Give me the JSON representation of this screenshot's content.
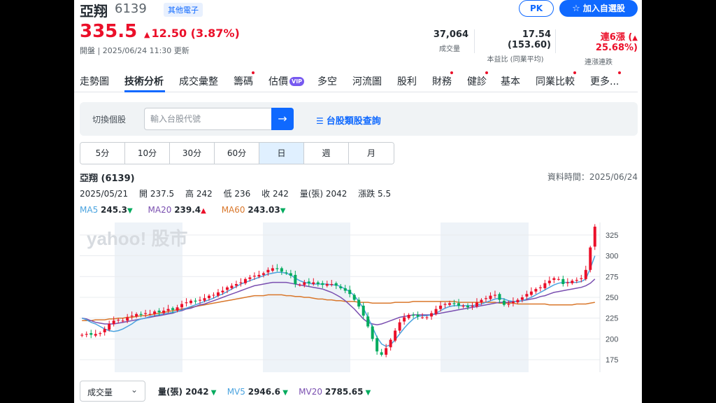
{
  "header": {
    "name": "亞翔",
    "code": "6139",
    "tag": "其他電子",
    "pk_label": "PK",
    "add_label": "加入自選股",
    "price": "335.5",
    "change": "12.50 (3.87%)",
    "status": "開盤 | 2025/06/24 11:30 更新"
  },
  "stats": [
    {
      "value": "37,064",
      "label": "成交量"
    },
    {
      "value": "17.54 (153.60)",
      "label": "本益比 (同業平均)"
    },
    {
      "value_main": "連6漲 (",
      "value_pct": "25.68%)",
      "label": "連漲連跌"
    }
  ],
  "tabs": [
    "走勢圖",
    "技術分析",
    "成交彙整",
    "籌碼",
    "估價",
    "多空",
    "河流圖",
    "股利",
    "財務",
    "健診",
    "基本",
    "同業比較",
    "更多..."
  ],
  "vip_badge": "VIP",
  "search": {
    "label": "切換個股",
    "placeholder": "輸入台股代號",
    "category_link": "台股類股查詢"
  },
  "periods": [
    "5分",
    "10分",
    "30分",
    "60分",
    "日",
    "週",
    "月"
  ],
  "chart_info": {
    "title": "亞翔 (6139)",
    "data_time": "資料時間：2025/06/24",
    "date": "2025/05/21",
    "open": "開 237.5",
    "high": "高 242",
    "low": "低 236",
    "close": "收 242",
    "volume": "量(張) 2042",
    "diff": "漲跌 5.5"
  },
  "ma": [
    {
      "name": "MA5",
      "value": "245.3",
      "dir": "down",
      "color": "#4aa3df"
    },
    {
      "name": "MA20",
      "value": "239.4",
      "dir": "up",
      "color": "#7a4fb0"
    },
    {
      "name": "MA60",
      "value": "243.03",
      "dir": "down",
      "color": "#d9772b"
    }
  ],
  "chart_data": {
    "type": "candlestick",
    "watermark": "yahoo! 股市",
    "y_ticks": [
      175,
      200,
      225,
      250,
      275,
      300,
      325
    ],
    "ylim": [
      160,
      340
    ],
    "closes": [
      205,
      206,
      205,
      206,
      207,
      212,
      218,
      222,
      223,
      222,
      226,
      228,
      230,
      229,
      231,
      230,
      233,
      232,
      234,
      236,
      235,
      238,
      242,
      244,
      246,
      245,
      247,
      249,
      252,
      253,
      256,
      258,
      262,
      264,
      266,
      268,
      272,
      274,
      276,
      277,
      279,
      283,
      285,
      284,
      281,
      279,
      276,
      266,
      265,
      268,
      267,
      268,
      266,
      265,
      266,
      266,
      264,
      261,
      258,
      254,
      247,
      239,
      228,
      215,
      200,
      185,
      181,
      189,
      199,
      210,
      220,
      226,
      229,
      228,
      227,
      226,
      226,
      231,
      236,
      240,
      242,
      243,
      242,
      240,
      240,
      238,
      240,
      244,
      247,
      249,
      252,
      253,
      247,
      241,
      242,
      245,
      247,
      250,
      254,
      257,
      260,
      262,
      267,
      270,
      273,
      272,
      266,
      268,
      270,
      271,
      273,
      283,
      310,
      335
    ],
    "ma5": [
      225,
      223,
      220,
      218,
      215,
      212,
      210,
      209,
      210,
      212,
      215,
      218,
      222,
      224,
      225,
      227,
      228,
      229,
      230,
      231,
      232,
      233,
      235,
      237,
      239,
      241,
      243,
      245,
      247,
      249,
      252,
      254,
      257,
      260,
      263,
      266,
      268,
      270,
      272,
      274,
      276,
      278,
      279,
      280,
      280,
      279,
      277,
      273,
      270,
      268,
      267,
      266,
      266,
      266,
      266,
      265,
      265,
      263,
      260,
      257,
      252,
      245,
      237,
      226,
      214,
      202,
      194,
      191,
      193,
      199,
      206,
      213,
      219,
      224,
      227,
      228,
      228,
      229,
      231,
      234,
      237,
      239,
      240,
      240,
      240,
      240,
      240,
      241,
      242,
      244,
      246,
      248,
      249,
      248,
      246,
      245,
      245,
      246,
      248,
      250,
      253,
      256,
      259,
      262,
      265,
      267,
      268,
      268,
      268,
      268,
      269,
      272,
      285,
      300
    ],
    "ma20": [
      225,
      224,
      222,
      220,
      219,
      218,
      218,
      218,
      219,
      220,
      221,
      222,
      223,
      224,
      225,
      226,
      227,
      228,
      229,
      230,
      231,
      233,
      234,
      236,
      237,
      239,
      241,
      242,
      244,
      246,
      248,
      250,
      252,
      254,
      256,
      258,
      260,
      262,
      264,
      265,
      266,
      267,
      268,
      268,
      268,
      268,
      267,
      266,
      265,
      264,
      263,
      262,
      261,
      260,
      258,
      256,
      253,
      250,
      246,
      241,
      236,
      230,
      224,
      220,
      218,
      217,
      218,
      220,
      222,
      224,
      226,
      227,
      228,
      229,
      229,
      229,
      229,
      229,
      230,
      231,
      232,
      233,
      234,
      235,
      236,
      237,
      238,
      239,
      240,
      241,
      242,
      243,
      244,
      244,
      244,
      245,
      245,
      246,
      247,
      248,
      249,
      251,
      252,
      254,
      256,
      257,
      258,
      259,
      260,
      261,
      262,
      264,
      267,
      272
    ],
    "ma60": [
      222,
      222,
      222,
      223,
      223,
      223,
      224,
      224,
      225,
      225,
      226,
      226,
      227,
      228,
      228,
      229,
      230,
      231,
      232,
      233,
      234,
      235,
      236,
      237,
      238,
      239,
      240,
      241,
      242,
      243,
      244,
      245,
      246,
      247,
      248,
      249,
      250,
      251,
      252,
      252,
      252,
      253,
      253,
      253,
      253,
      252,
      252,
      251,
      251,
      250,
      250,
      249,
      248,
      248,
      247,
      247,
      246,
      246,
      245,
      245,
      245,
      244,
      244,
      244,
      243,
      243,
      243,
      243,
      243,
      244,
      244,
      244,
      244,
      245,
      245,
      245,
      245,
      245,
      245,
      245,
      245,
      245,
      245,
      244,
      244,
      244,
      244,
      244,
      244,
      244,
      244,
      244,
      243,
      243,
      243,
      243,
      242,
      242,
      242,
      242,
      242,
      242,
      242,
      241,
      241,
      241,
      241,
      241,
      241,
      242,
      242,
      242,
      243,
      244
    ]
  },
  "volume_bar": {
    "select_label": "成交量",
    "vol": "量(張) 2042",
    "mv5_name": "MV5",
    "mv5": "2946.6",
    "mv20_name": "MV20",
    "mv20": "2785.65",
    "mv5_color": "#4aa3df",
    "mv20_color": "#7a4fb0"
  },
  "colors": {
    "up": "#eb0f29",
    "down": "#00ab5e",
    "accent": "#0f69ff"
  }
}
